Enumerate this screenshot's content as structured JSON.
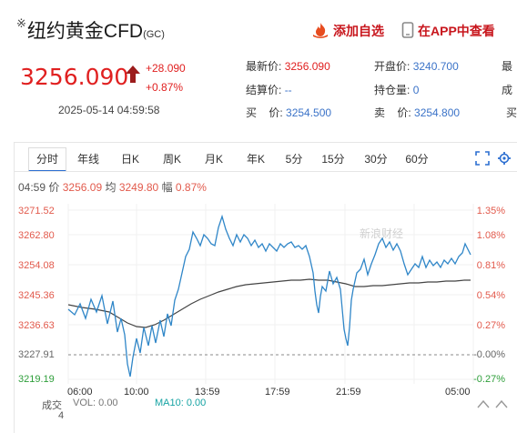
{
  "header": {
    "star": "※",
    "title": "纽约黄金CFD",
    "code": "(GC)",
    "add_watch": "添加自选",
    "view_app": "在APP中查看"
  },
  "quote": {
    "price": "3256.090",
    "change": "+28.090",
    "change_pct": "+0.87%",
    "datetime": "2025-05-14 04:59:58",
    "direction": "up"
  },
  "stats": [
    {
      "label": "最新价:",
      "value": "3256.090",
      "color": "red"
    },
    {
      "label": "开盘价:",
      "value": "3240.700",
      "color": "blue"
    },
    {
      "label": "最",
      "value": "",
      "color": ""
    },
    {
      "label": "结算价:",
      "value": "--",
      "color": "blue"
    },
    {
      "label": "持仓量:",
      "value": "0",
      "color": "blue"
    },
    {
      "label": "成",
      "value": "",
      "color": ""
    },
    {
      "label": "买    价:",
      "value": "3254.500",
      "color": "blue"
    },
    {
      "label": "卖    价:",
      "value": "3254.800",
      "color": "blue"
    },
    {
      "label": "买",
      "value": "",
      "color": ""
    }
  ],
  "tabs": [
    "分时",
    "年线",
    "日K",
    "周K",
    "月K",
    "年K",
    "5分",
    "15分",
    "30分",
    "60分"
  ],
  "active_tab": "分时",
  "info_bar": {
    "time": "04:59",
    "price_label": "价",
    "price": "3256.09",
    "avg_label": "均",
    "avg": "3249.80",
    "amp_label": "幅",
    "amp": "0.87%"
  },
  "y_left": [
    "3271.52",
    "3262.80",
    "3254.08",
    "3245.36",
    "3236.63",
    "3227.91",
    "3219.19"
  ],
  "y_right": [
    "1.35%",
    "1.08%",
    "0.81%",
    "0.54%",
    "0.27%",
    "-0.00%",
    "-0.27%"
  ],
  "x_labels": [
    "06:00",
    "10:00",
    "13:59",
    "17:59",
    "21:59",
    "05:00"
  ],
  "volume": {
    "label": "成交",
    "label2": "4",
    "vol_label": "VOL:",
    "vol": "0.00",
    "ma_label": "MA10:",
    "ma": "0.00"
  },
  "watermark": "新浪财经",
  "colors": {
    "up": "#e02020",
    "line": "#2f86c8",
    "avg": "#444444",
    "green": "#2e9e3a"
  }
}
